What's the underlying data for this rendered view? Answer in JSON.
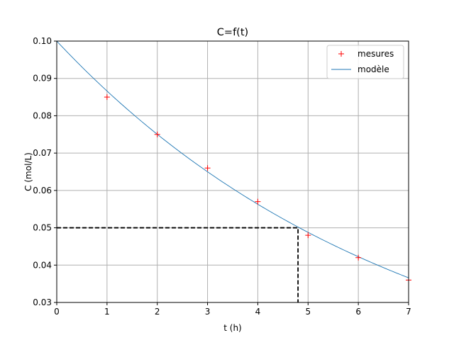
{
  "chart_data": {
    "type": "line",
    "title": "C=f(t)",
    "xlabel": "t (h)",
    "ylabel": "C (mol/L)",
    "xlim": [
      0,
      7
    ],
    "ylim": [
      0.03,
      0.1
    ],
    "xticks": [
      0,
      1,
      2,
      3,
      4,
      5,
      6,
      7
    ],
    "xtick_labels": [
      "0",
      "1",
      "2",
      "3",
      "4",
      "5",
      "6",
      "7"
    ],
    "yticks": [
      0.03,
      0.04,
      0.05,
      0.06,
      0.07,
      0.08,
      0.09,
      0.1
    ],
    "ytick_labels": [
      "0.03",
      "0.04",
      "0.05",
      "0.06",
      "0.07",
      "0.08",
      "0.09",
      "0.10"
    ],
    "grid": true,
    "legend_position": "top-right",
    "series": [
      {
        "name": "mesures",
        "style": "markers",
        "marker": "+",
        "color": "#ff0000",
        "x": [
          1,
          2,
          3,
          4,
          5,
          6,
          7
        ],
        "y": [
          0.085,
          0.075,
          0.066,
          0.057,
          0.048,
          0.042,
          0.036
        ]
      },
      {
        "name": "modèle",
        "style": "line",
        "color": "#1f77b4",
        "x": [
          0,
          0.5,
          1,
          1.5,
          2,
          2.5,
          3,
          3.5,
          4,
          4.5,
          5,
          5.5,
          6,
          6.5,
          7
        ],
        "y": [
          0.1,
          0.0931,
          0.0866,
          0.0806,
          0.075,
          0.0698,
          0.065,
          0.0605,
          0.0563,
          0.0524,
          0.0488,
          0.0454,
          0.0422,
          0.0393,
          0.0366
        ]
      }
    ],
    "annotation": {
      "style": "dashed",
      "color": "#000000",
      "x": 4.8,
      "y": 0.05
    }
  }
}
